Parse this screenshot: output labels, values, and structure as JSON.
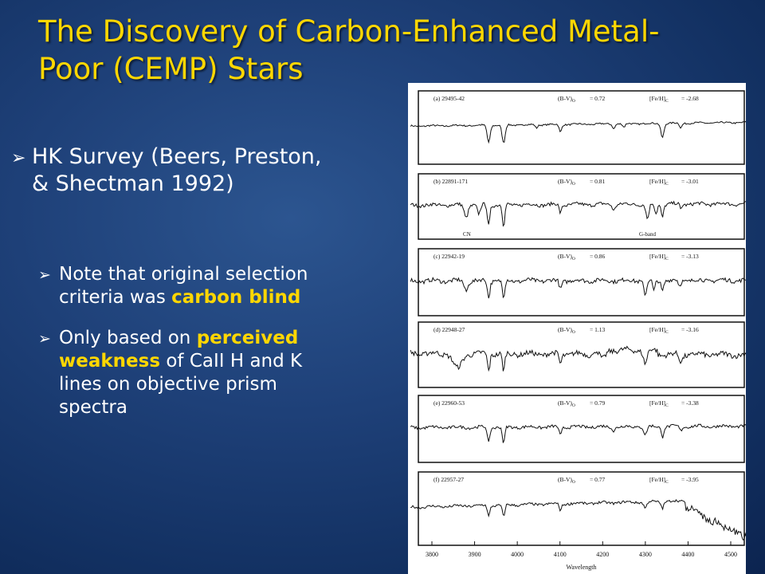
{
  "slide": {
    "title_line1": "The Discovery of Carbon-Enhanced Metal-",
    "title_line2": "Poor (CEMP) Stars",
    "bullet1_line1": "HK Survey (Beers, Preston,",
    "bullet1_line2": "& Shectman 1992)",
    "sub1": {
      "line1": "Note that original selection",
      "line2_pre": "criteria was ",
      "line2_hl": "carbon blind"
    },
    "sub2": {
      "line1_pre": "Only based on ",
      "line1_hl": "perceived",
      "line2_hl": "weakness",
      "line2_post": " of CaII H and K",
      "line3": "lines on objective prism",
      "line4": "spectra"
    },
    "bullet_marker": "➢"
  },
  "figure": {
    "panels": [
      {
        "label": "(a) 29495-42",
        "bv": "(B-V)",
        "bv_sub": "O",
        "bv_val": "= 0.72",
        "feh": "[Fe/H]",
        "feh_sub": "C",
        "feh_val": "= -2.68"
      },
      {
        "label": "(b) 22891-171",
        "bv": "(B-V)",
        "bv_sub": "O",
        "bv_val": "= 0.81",
        "feh": "[Fe/H]",
        "feh_sub": "C",
        "feh_val": "= -3.01",
        "annotations": [
          "CN",
          "G-band"
        ]
      },
      {
        "label": "(c) 22942-19",
        "bv": "(B-V)",
        "bv_sub": "O",
        "bv_val": "= 0.86",
        "feh": "[Fe/H]",
        "feh_sub": "C",
        "feh_val": "= -3.13"
      },
      {
        "label": "(d) 22948-27",
        "bv": "(B-V)",
        "bv_sub": "O",
        "bv_val": "= 1.13",
        "feh": "[Fe/H]",
        "feh_sub": "C",
        "feh_val": "= -3.16"
      },
      {
        "label": "(e) 22960-53",
        "bv": "(B-V)",
        "bv_sub": "O",
        "bv_val": "= 0.79",
        "feh": "[Fe/H]",
        "feh_sub": "C",
        "feh_val": "= -3.38"
      },
      {
        "label": "(f) 22957-27",
        "bv": "(B-V)",
        "bv_sub": "O",
        "bv_val": "= 0.77",
        "feh": "[Fe/H]",
        "feh_sub": "C",
        "feh_val": "= -3.95"
      }
    ],
    "x_ticks": [
      "3800",
      "3900",
      "4000",
      "4100",
      "4200",
      "4300",
      "4400",
      "4500"
    ],
    "xlabel": "Wavelength"
  }
}
